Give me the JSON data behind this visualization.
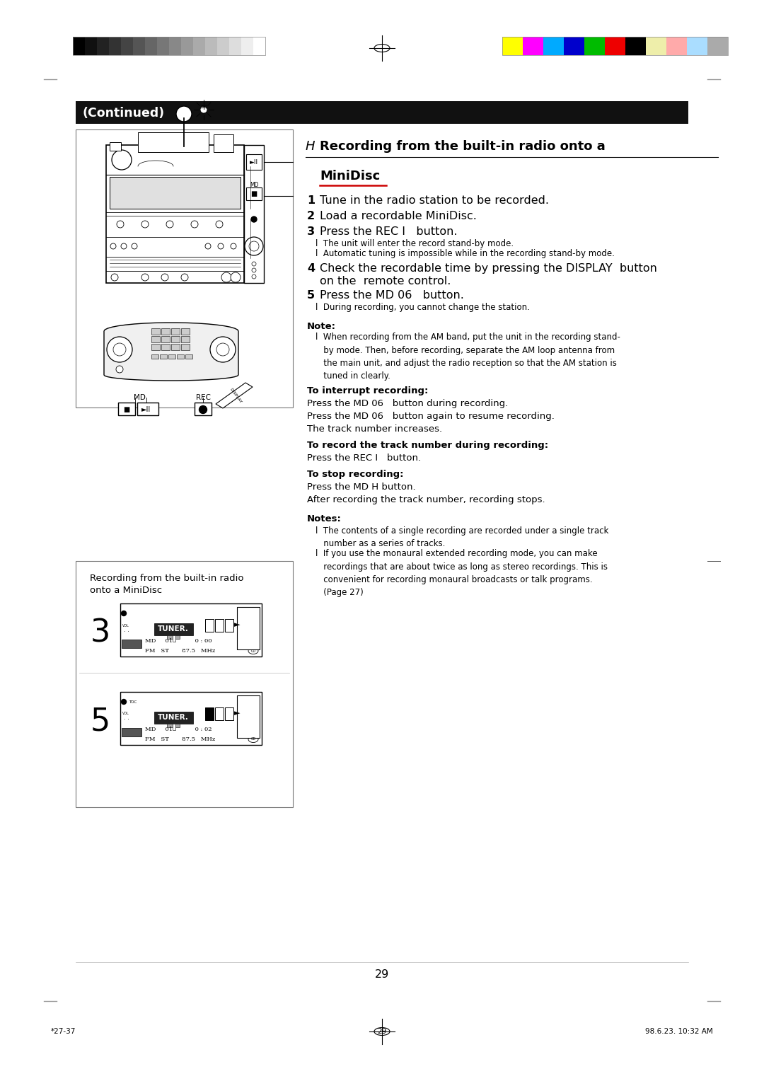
{
  "page_bg": "#ffffff",
  "page_number": "29",
  "footer_left": "*27-37",
  "footer_center": "29",
  "footer_right": "98.6.23. 10:32 AM",
  "continued_bar_text": "(Continued)",
  "continued_bar_bg": "#111111",
  "continued_bar_text_color": "#ffffff",
  "grayscale_colors": [
    "#000000",
    "#101010",
    "#222222",
    "#333333",
    "#444444",
    "#555555",
    "#666666",
    "#777777",
    "#888888",
    "#999999",
    "#aaaaaa",
    "#bbbbbb",
    "#cccccc",
    "#dddddd",
    "#eeeeee",
    "#ffffff"
  ],
  "color_bars": [
    "#ffff00",
    "#ff00ff",
    "#00aaff",
    "#0000cc",
    "#00bb00",
    "#ee0000",
    "#000000",
    "#eeeeaa",
    "#ffaaaa",
    "#aaddff",
    "#aaaaaa"
  ]
}
